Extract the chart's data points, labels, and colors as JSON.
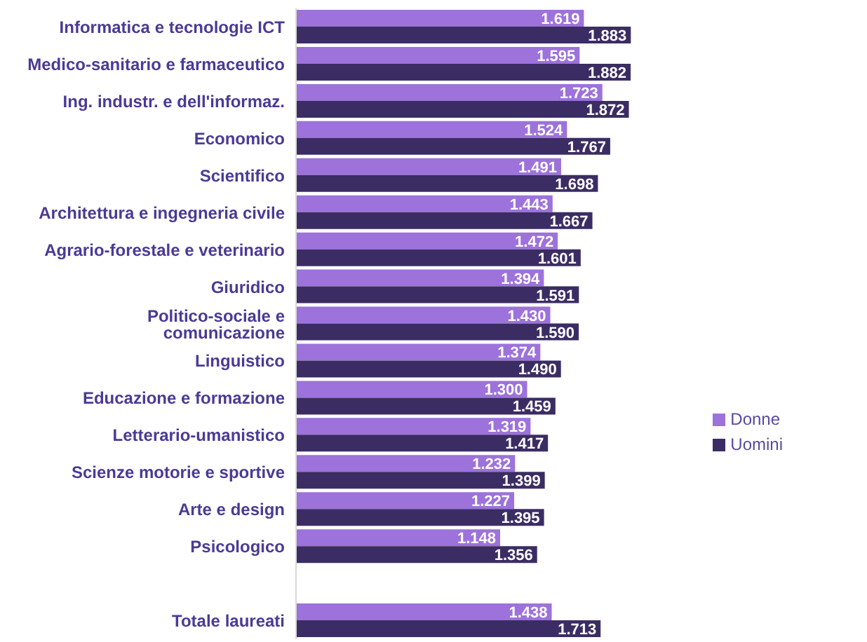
{
  "chart_data": {
    "type": "bar",
    "orientation": "horizontal",
    "categories": [
      "Informatica e tecnologie ICT",
      "Medico-sanitario e farmaceutico",
      "Ing. industr. e dell'informaz.",
      "Economico",
      "Scientifico",
      "Architettura e ingegneria civile",
      "Agrario-forestale e veterinario",
      "Giuridico",
      "Politico-sociale e comunicazione",
      "Linguistico",
      "Educazione e formazione",
      "Letterario-umanistico",
      "Scienze motorie e sportive",
      "Arte e design",
      "Psicologico",
      null,
      "Totale laureati"
    ],
    "series": [
      {
        "name": "Donne",
        "color": "#9d72db",
        "values": [
          1619,
          1595,
          1723,
          1524,
          1491,
          1443,
          1472,
          1394,
          1430,
          1374,
          1300,
          1319,
          1232,
          1227,
          1148,
          null,
          1438
        ],
        "value_labels": [
          "1.619",
          "1.595",
          "1.723",
          "1.524",
          "1.491",
          "1.443",
          "1.472",
          "1.394",
          "1.430",
          "1.374",
          "1.300",
          "1.319",
          "1.232",
          "1.227",
          "1.148",
          null,
          "1.438"
        ]
      },
      {
        "name": "Uomini",
        "color": "#3b2d63",
        "values": [
          1883,
          1882,
          1872,
          1767,
          1698,
          1667,
          1601,
          1591,
          1590,
          1490,
          1459,
          1417,
          1399,
          1395,
          1356,
          null,
          1713
        ],
        "value_labels": [
          "1.883",
          "1.882",
          "1.872",
          "1.767",
          "1.698",
          "1.667",
          "1.601",
          "1.591",
          "1.590",
          "1.490",
          "1.459",
          "1.417",
          "1.399",
          "1.395",
          "1.356",
          null,
          "1.713"
        ]
      }
    ],
    "legend": "right",
    "grid": false
  }
}
